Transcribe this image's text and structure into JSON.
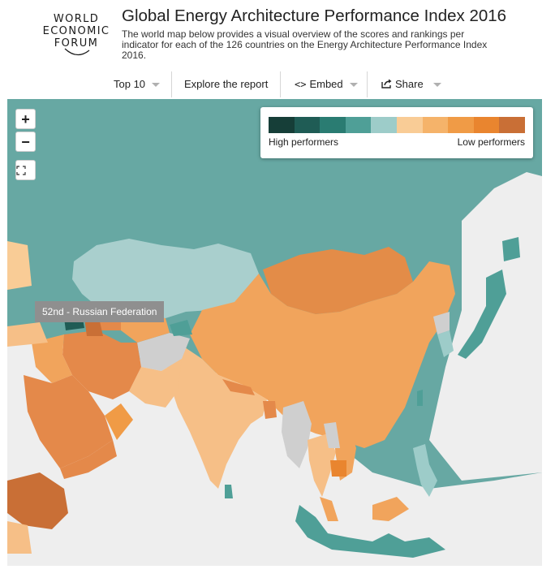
{
  "logo": {
    "lines": [
      "WORLD",
      "ECONOMIC",
      "FORUM"
    ]
  },
  "header": {
    "title": "Global Energy Architecture Performance Index 2016",
    "subtitle": "The world map below provides a visual overview of the scores and rankings per indicator for each of the 126 countries on the Energy Architecture Performance Index 2016."
  },
  "toolbar": {
    "top10_label": "Top 10",
    "explore_label": "Explore the report",
    "embed_label": "Embed",
    "share_label": "Share"
  },
  "zoom": {
    "in_label": "+",
    "out_label": "−"
  },
  "legend": {
    "high_label": "High performers",
    "low_label": "Low performers",
    "colors": [
      "#163e38",
      "#1f5c55",
      "#2a7c72",
      "#4f9f97",
      "#9dccc9",
      "#f9cc96",
      "#f5b36a",
      "#f09b46",
      "#e9852f",
      "#c96f36"
    ]
  },
  "tooltip": {
    "text": "52nd - Russian Federation"
  },
  "colors": {
    "ocean": "#67a8a3",
    "russia": "#67a8a3",
    "kazakhstan": "#a9cfcd",
    "china": "#f1a45c",
    "mongolia": "#e38c48",
    "india": "#f6bf87",
    "iran": "#e4894a",
    "saudi_arabia": "#e4894a",
    "no_data": "#cfcfcf",
    "non_ranked_land": "#eeeeee"
  }
}
